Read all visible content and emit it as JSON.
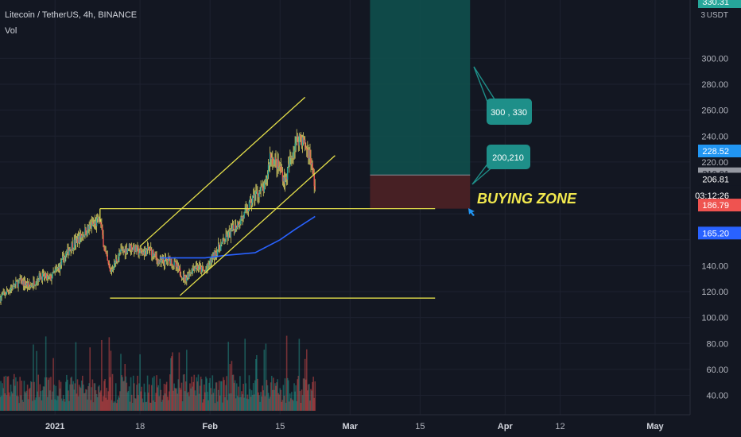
{
  "header": {
    "symbol": "Litecoin / TetherUS, 4h, BINANCE",
    "indicator": "Vol"
  },
  "colors": {
    "background": "#131722",
    "grid": "#1e2230",
    "candle_up": "#26a69a",
    "candle_down": "#ef5350",
    "candle_wick": "#d8cf63",
    "ma_line": "#2962ff",
    "trendline": "#e5e04a",
    "profit_zone": "#0f4f4c",
    "loss_zone": "#4a2125",
    "callout": "#1e8f89",
    "buy_text": "#f2e94e",
    "marker_blue": "#2196f3"
  },
  "axis": {
    "unit": "USDT",
    "currency_tag": "3",
    "y_ticks": [
      "300.00",
      "280.00",
      "260.00",
      "240.00",
      "220.00",
      "206.81",
      "140.00",
      "120.00",
      "100.00",
      "80.00",
      "60.00",
      "40.00"
    ],
    "x_ticks": [
      "2021",
      "18",
      "Feb",
      "15",
      "Mar",
      "15",
      "Apr",
      "12",
      "May"
    ],
    "x_ticks_bold": [
      "2021",
      "Feb",
      "Mar",
      "Apr",
      "May"
    ]
  },
  "price_tags": {
    "top": "330.31",
    "p228": "228.52",
    "p210": "210.91",
    "p206": "206.81",
    "timer": "03:12:26",
    "p186": "186.79",
    "p165": "165.20"
  },
  "annotations": {
    "callout_tp": "300 , 330",
    "callout_entry": "200,210",
    "buying_zone": "BUYING ZONE"
  },
  "chart_data": {
    "type": "candlestick",
    "title": "Litecoin / TetherUS, 4h, BINANCE",
    "xlabel": "",
    "ylabel": "",
    "unit": "USDT",
    "x_range": [
      "2020-12-21",
      "2021-05-08"
    ],
    "ylim": [
      25,
      345
    ],
    "grid": true,
    "price_path": [
      [
        "2020-12-21",
        115
      ],
      [
        "2020-12-23",
        122
      ],
      [
        "2020-12-25",
        128
      ],
      [
        "2020-12-27",
        124
      ],
      [
        "2020-12-29",
        132
      ],
      [
        "2020-12-31",
        130
      ],
      [
        "2021-01-02",
        140
      ],
      [
        "2021-01-04",
        154
      ],
      [
        "2021-01-06",
        162
      ],
      [
        "2021-01-08",
        170
      ],
      [
        "2021-01-10",
        175
      ],
      [
        "2021-01-11",
        150
      ],
      [
        "2021-01-12",
        135
      ],
      [
        "2021-01-14",
        150
      ],
      [
        "2021-01-16",
        155
      ],
      [
        "2021-01-18",
        150
      ],
      [
        "2021-01-20",
        152
      ],
      [
        "2021-01-22",
        142
      ],
      [
        "2021-01-24",
        145
      ],
      [
        "2021-01-27",
        130
      ],
      [
        "2021-01-29",
        140
      ],
      [
        "2021-01-31",
        135
      ],
      [
        "2021-02-02",
        150
      ],
      [
        "2021-02-04",
        160
      ],
      [
        "2021-02-06",
        170
      ],
      [
        "2021-02-08",
        180
      ],
      [
        "2021-02-10",
        195
      ],
      [
        "2021-02-12",
        200
      ],
      [
        "2021-02-13",
        225
      ],
      [
        "2021-02-15",
        215
      ],
      [
        "2021-02-16",
        205
      ],
      [
        "2021-02-18",
        235
      ],
      [
        "2021-02-19",
        240
      ],
      [
        "2021-02-21",
        225
      ],
      [
        "2021-02-22",
        200
      ]
    ],
    "moving_average": [
      [
        "2021-01-22",
        146
      ],
      [
        "2021-01-31",
        146
      ],
      [
        "2021-02-04",
        148
      ],
      [
        "2021-02-10",
        150
      ],
      [
        "2021-02-15",
        160
      ],
      [
        "2021-02-18",
        168
      ],
      [
        "2021-02-22",
        178
      ]
    ],
    "volume_range": [
      0,
      100
    ],
    "trendlines": [
      {
        "name": "channel-upper",
        "from": [
          "2021-01-18",
          155
        ],
        "to": [
          "2021-02-20",
          270
        ]
      },
      {
        "name": "channel-lower",
        "from": [
          "2021-01-26",
          117
        ],
        "to": [
          "2021-02-26",
          225
        ]
      },
      {
        "name": "resistance",
        "from": [
          "2021-01-10",
          184
        ],
        "to": [
          "2021-03-18",
          184
        ]
      },
      {
        "name": "support",
        "from": [
          "2021-01-12",
          115
        ],
        "to": [
          "2021-03-18",
          115
        ]
      },
      {
        "name": "resistance-stub",
        "from": [
          "2021-01-10",
          184
        ],
        "to": [
          "2021-01-10",
          174
        ]
      }
    ],
    "position": {
      "start": "2021-03-05",
      "end": "2021-03-25",
      "target": 345,
      "entry": 210,
      "stop": 184
    }
  }
}
